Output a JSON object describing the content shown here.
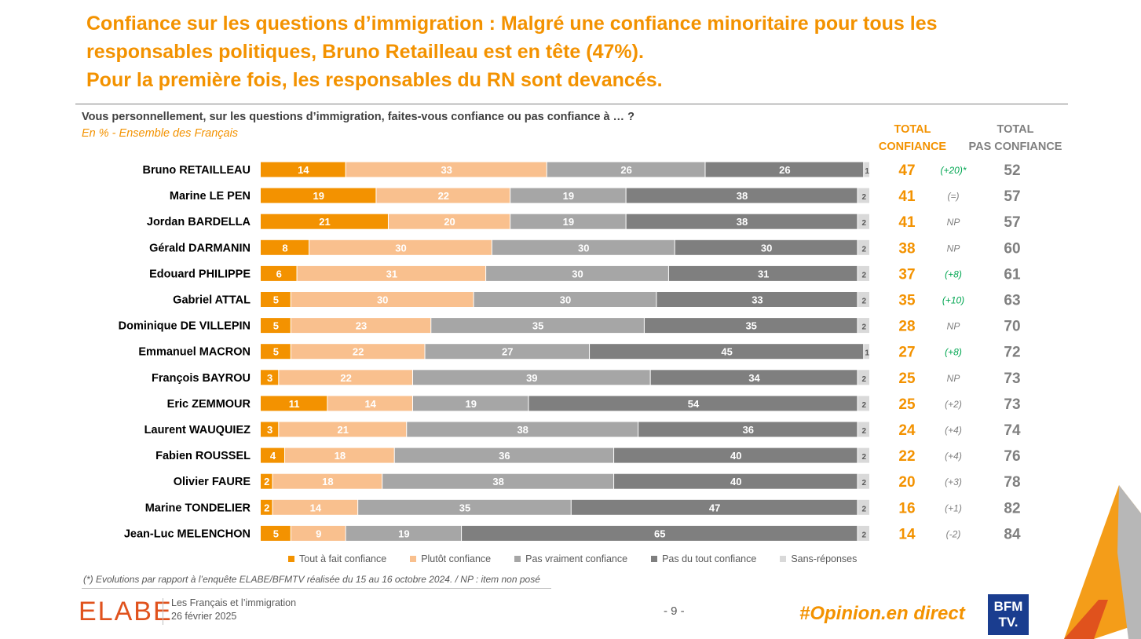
{
  "header": {
    "title_line1": "Confiance sur les questions d’immigration : Malgré une confiance minoritaire pour tous les",
    "title_line2": "responsables politiques, Bruno Retailleau est en tête (47%).",
    "title_line3": "Pour la première fois, les responsables du RN sont devancés.",
    "question": "Vous personnellement, sur les questions d’immigration, faites-vous confiance ou pas confiance à … ?",
    "subtitle": "En % - Ensemble des Français",
    "col_total_confiance_1": "TOTAL",
    "col_total_confiance_2": "CONFIANCE",
    "col_total_pas_1": "TOTAL",
    "col_total_pas_2": "PAS CONFIANCE"
  },
  "colors": {
    "tout_a_fait": "#F39200",
    "plutot": "#F9C08E",
    "pas_vraiment": "#A6A6A6",
    "pas_du_tout": "#7F7F7F",
    "sans_reponse": "#D9D9D9",
    "total_confiance": "#F39200",
    "total_pas": "#7F7F7F",
    "evolution_positive": "#00A651",
    "evolution_neutral": "#7F7F7F"
  },
  "chart_data": {
    "type": "bar",
    "orientation": "horizontal-stacked",
    "unit": "%",
    "categories": [
      "Bruno RETAILLEAU",
      "Marine LE PEN",
      "Jordan BARDELLA",
      "Gérald DARMANIN",
      "Edouard PHILIPPE",
      "Gabriel ATTAL",
      "Dominique DE VILLEPIN",
      "Emmanuel MACRON",
      "François BAYROU",
      "Eric ZEMMOUR",
      "Laurent WAUQUIEZ",
      "Fabien ROUSSEL",
      "Olivier FAURE",
      "Marine TONDELIER",
      "Jean-Luc MELENCHON"
    ],
    "series": [
      {
        "name": "Tout à fait confiance",
        "values": [
          14,
          19,
          21,
          8,
          6,
          5,
          5,
          5,
          3,
          11,
          3,
          4,
          2,
          2,
          5
        ]
      },
      {
        "name": "Plutôt confiance",
        "values": [
          33,
          22,
          20,
          30,
          31,
          30,
          23,
          22,
          22,
          14,
          21,
          18,
          18,
          14,
          9
        ]
      },
      {
        "name": "Pas vraiment confiance",
        "values": [
          26,
          19,
          19,
          30,
          30,
          30,
          35,
          27,
          39,
          19,
          38,
          36,
          38,
          35,
          19
        ]
      },
      {
        "name": "Pas du tout confiance",
        "values": [
          26,
          38,
          38,
          30,
          31,
          33,
          35,
          45,
          34,
          54,
          36,
          40,
          40,
          47,
          65
        ]
      },
      {
        "name": "Sans-réponses",
        "values": [
          1,
          2,
          2,
          2,
          2,
          2,
          2,
          1,
          2,
          2,
          2,
          2,
          2,
          2,
          2
        ]
      }
    ],
    "total_confiance": [
      47,
      41,
      41,
      38,
      37,
      35,
      28,
      27,
      25,
      25,
      24,
      22,
      20,
      16,
      14
    ],
    "evolution": [
      "(+20)*",
      "(=)",
      "NP",
      "NP",
      "(+8)",
      "(+10)",
      "NP",
      "(+8)",
      "NP",
      "(+2)",
      "(+4)",
      "(+4)",
      "(+3)",
      "(+1)",
      "(-2)"
    ],
    "evolution_positive_highlight": [
      true,
      false,
      false,
      false,
      true,
      true,
      false,
      true,
      false,
      false,
      false,
      false,
      false,
      false,
      false
    ],
    "total_pas_confiance": [
      52,
      57,
      57,
      60,
      61,
      63,
      70,
      72,
      73,
      73,
      74,
      76,
      78,
      82,
      84
    ],
    "legend_position": "bottom"
  },
  "footer": {
    "note": "(*) Evolutions par rapport à l’enquête ELABE/BFMTV réalisée du 15 au 16 octobre 2024. /  NP : item non posé",
    "logo": "ELABE",
    "study": "Les Français et l’immigration",
    "date": "26 février 2025",
    "page": "- 9 -",
    "hashtag": "#Opinion.en direct",
    "partner_logo_line1": "BFM",
    "partner_logo_line2": "TV."
  }
}
